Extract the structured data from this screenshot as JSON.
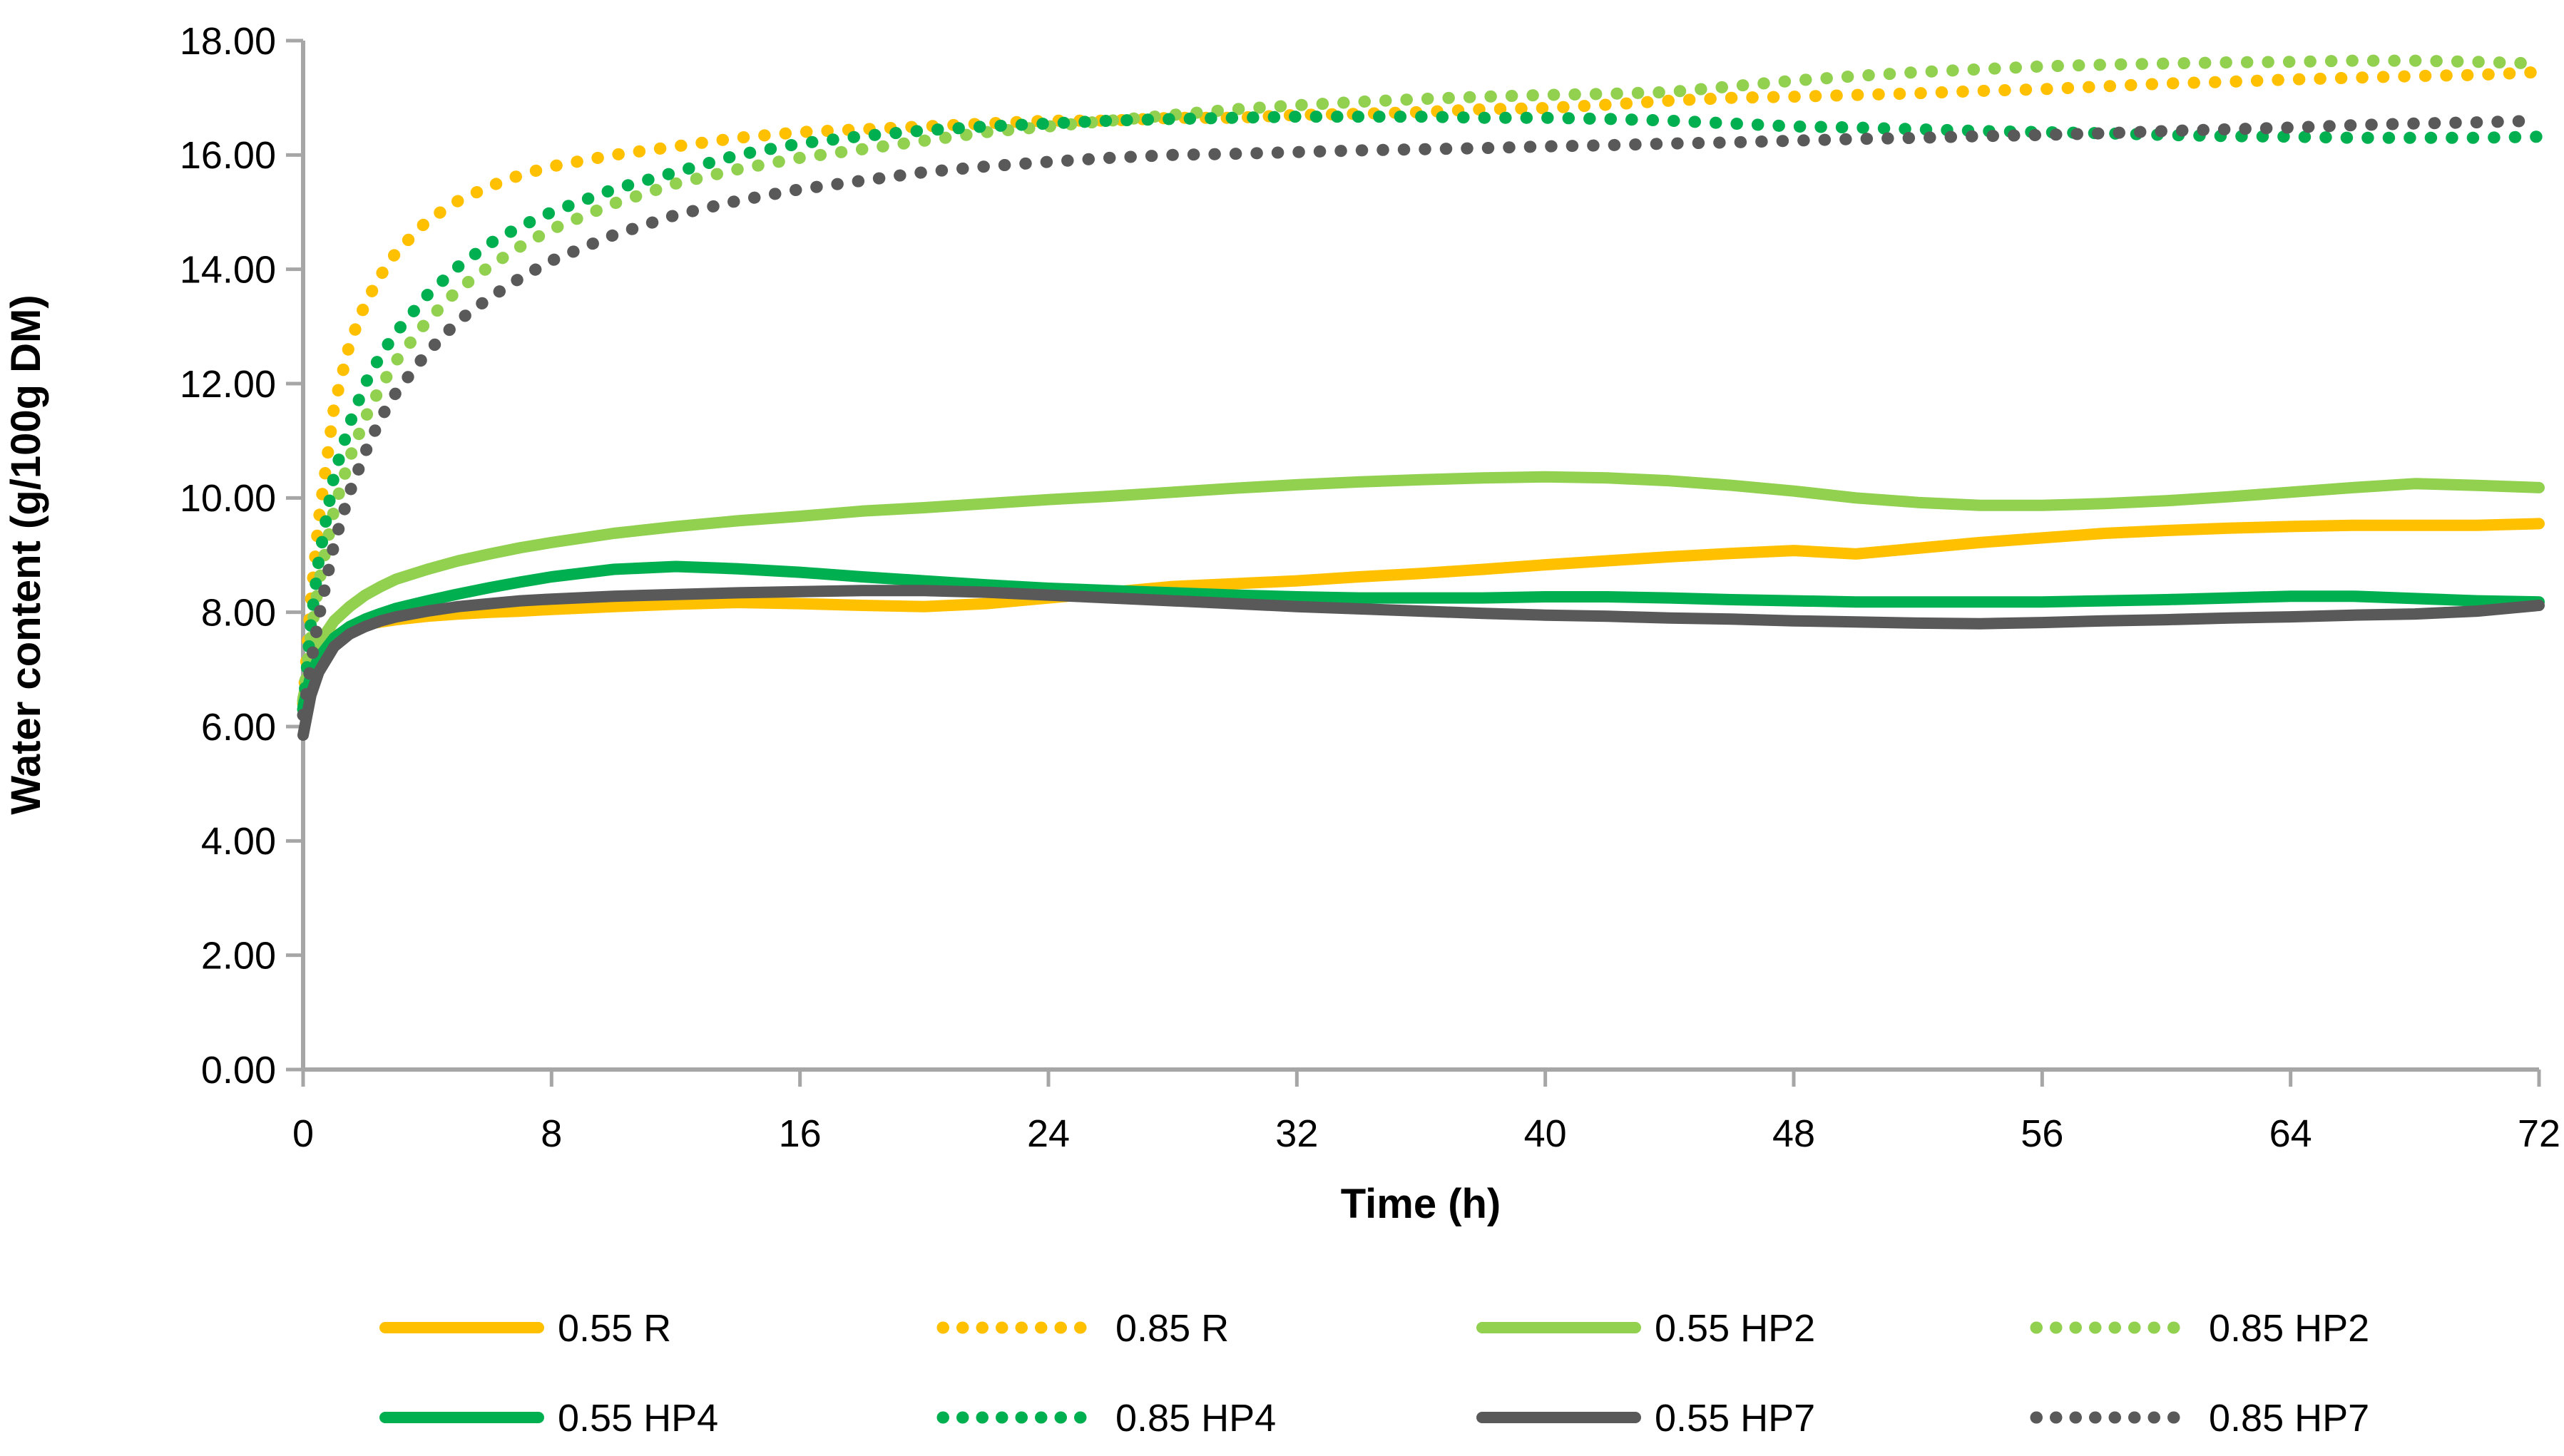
{
  "chart_data": {
    "type": "line",
    "title": "",
    "xlabel": "Time (h)",
    "ylabel": "Water content (g/100g DM)",
    "xlim": [
      0,
      72
    ],
    "ylim": [
      0,
      18
    ],
    "grid": false,
    "legend_position": "bottom",
    "x_ticks": [
      0,
      8,
      16,
      24,
      32,
      40,
      48,
      56,
      64,
      72
    ],
    "x_tick_labels": [
      "0",
      "8",
      "16",
      "24",
      "32",
      "40",
      "48",
      "56",
      "64",
      "72"
    ],
    "y_ticks": [
      0,
      2,
      4,
      6,
      8,
      10,
      12,
      14,
      16,
      18
    ],
    "y_tick_labels": [
      "0.00",
      "2.00",
      "4.00",
      "6.00",
      "8.00",
      "10.00",
      "12.00",
      "14.00",
      "16.00",
      "18.00"
    ],
    "axis_color": "#a6a6a6",
    "x": [
      0,
      0.25,
      0.5,
      1,
      1.5,
      2,
      2.5,
      3,
      4,
      5,
      6,
      7,
      8,
      10,
      12,
      14,
      16,
      18,
      20,
      22,
      24,
      26,
      28,
      30,
      32,
      34,
      36,
      38,
      40,
      42,
      44,
      46,
      48,
      50,
      52,
      54,
      56,
      58,
      60,
      62,
      64,
      66,
      68,
      70,
      72
    ],
    "series": [
      {
        "name": "0.55 R",
        "color": "#FFC000",
        "style": "solid",
        "values": [
          6.45,
          6.95,
          7.25,
          7.58,
          7.7,
          7.78,
          7.83,
          7.87,
          7.93,
          7.97,
          8.0,
          8.02,
          8.05,
          8.1,
          8.14,
          8.17,
          8.15,
          8.12,
          8.1,
          8.15,
          8.25,
          8.35,
          8.45,
          8.5,
          8.55,
          8.62,
          8.68,
          8.75,
          8.83,
          8.9,
          8.97,
          9.03,
          9.08,
          9.02,
          9.12,
          9.22,
          9.3,
          9.38,
          9.43,
          9.47,
          9.5,
          9.52,
          9.52,
          9.52,
          9.55
        ]
      },
      {
        "name": "0.85 R",
        "color": "#FFC000",
        "style": "dotted",
        "values": [
          6.4,
          8.2,
          9.6,
          11.6,
          12.7,
          13.4,
          13.9,
          14.3,
          14.85,
          15.2,
          15.45,
          15.65,
          15.8,
          16.0,
          16.15,
          16.3,
          16.4,
          16.45,
          16.5,
          16.55,
          16.6,
          16.6,
          16.65,
          16.65,
          16.7,
          16.72,
          16.75,
          16.8,
          16.82,
          16.88,
          16.95,
          17.0,
          17.02,
          17.05,
          17.08,
          17.12,
          17.15,
          17.2,
          17.25,
          17.28,
          17.32,
          17.35,
          17.38,
          17.4,
          17.45
        ]
      },
      {
        "name": "0.55 HP2",
        "color": "#92D050",
        "style": "solid",
        "values": [
          6.5,
          7.1,
          7.45,
          7.85,
          8.1,
          8.3,
          8.45,
          8.58,
          8.75,
          8.9,
          9.02,
          9.13,
          9.22,
          9.38,
          9.5,
          9.6,
          9.68,
          9.77,
          9.83,
          9.9,
          9.97,
          10.03,
          10.1,
          10.17,
          10.23,
          10.28,
          10.32,
          10.35,
          10.37,
          10.35,
          10.3,
          10.22,
          10.12,
          10.0,
          9.92,
          9.87,
          9.87,
          9.9,
          9.95,
          10.02,
          10.1,
          10.18,
          10.25,
          10.22,
          10.18
        ]
      },
      {
        "name": "0.85 HP2",
        "color": "#92D050",
        "style": "dotted",
        "values": [
          6.45,
          7.6,
          8.5,
          9.8,
          10.7,
          11.4,
          11.95,
          12.4,
          13.1,
          13.65,
          14.05,
          14.4,
          14.7,
          15.15,
          15.5,
          15.75,
          15.95,
          16.1,
          16.25,
          16.4,
          16.5,
          16.6,
          16.7,
          16.8,
          16.87,
          16.93,
          16.98,
          17.02,
          17.05,
          17.07,
          17.1,
          17.2,
          17.3,
          17.38,
          17.45,
          17.5,
          17.55,
          17.58,
          17.6,
          17.62,
          17.63,
          17.65,
          17.65,
          17.63,
          17.6
        ]
      },
      {
        "name": "0.55 HP4",
        "color": "#00B050",
        "style": "solid",
        "values": [
          6.35,
          6.9,
          7.2,
          7.55,
          7.75,
          7.88,
          7.98,
          8.07,
          8.2,
          8.32,
          8.43,
          8.53,
          8.62,
          8.75,
          8.8,
          8.76,
          8.7,
          8.62,
          8.55,
          8.48,
          8.42,
          8.38,
          8.34,
          8.3,
          8.27,
          8.25,
          8.25,
          8.25,
          8.27,
          8.27,
          8.25,
          8.22,
          8.2,
          8.18,
          8.18,
          8.18,
          8.18,
          8.2,
          8.22,
          8.25,
          8.28,
          8.28,
          8.24,
          8.2,
          8.18
        ]
      },
      {
        "name": "0.85 HP4",
        "color": "#00B050",
        "style": "dotted",
        "values": [
          6.3,
          7.8,
          8.9,
          10.4,
          11.3,
          12.0,
          12.5,
          12.9,
          13.55,
          14.05,
          14.45,
          14.75,
          15.0,
          15.4,
          15.7,
          16.0,
          16.2,
          16.33,
          16.43,
          16.5,
          16.55,
          16.6,
          16.63,
          16.65,
          16.67,
          16.67,
          16.67,
          16.65,
          16.65,
          16.63,
          16.6,
          16.55,
          16.5,
          16.48,
          16.45,
          16.42,
          16.4,
          16.38,
          16.35,
          16.33,
          16.32,
          16.3,
          16.3,
          16.3,
          16.32
        ]
      },
      {
        "name": "0.55 HP7",
        "color": "#595959",
        "style": "solid",
        "values": [
          5.85,
          6.55,
          6.95,
          7.4,
          7.62,
          7.75,
          7.85,
          7.92,
          8.02,
          8.1,
          8.15,
          8.2,
          8.23,
          8.28,
          8.31,
          8.34,
          8.36,
          8.38,
          8.38,
          8.35,
          8.3,
          8.25,
          8.2,
          8.15,
          8.1,
          8.06,
          8.02,
          7.98,
          7.95,
          7.93,
          7.9,
          7.88,
          7.85,
          7.83,
          7.81,
          7.8,
          7.82,
          7.85,
          7.87,
          7.9,
          7.92,
          7.95,
          7.97,
          8.02,
          8.12
        ]
      },
      {
        "name": "0.85 HP7",
        "color": "#595959",
        "style": "dotted",
        "values": [
          6.2,
          7.1,
          7.9,
          9.2,
          10.1,
          10.8,
          11.4,
          11.85,
          12.55,
          13.1,
          13.5,
          13.85,
          14.15,
          14.6,
          14.95,
          15.2,
          15.4,
          15.55,
          15.7,
          15.8,
          15.88,
          15.95,
          16.0,
          16.02,
          16.05,
          16.08,
          16.1,
          16.12,
          16.15,
          16.17,
          16.2,
          16.22,
          16.25,
          16.28,
          16.3,
          16.33,
          16.35,
          16.38,
          16.42,
          16.45,
          16.48,
          16.52,
          16.55,
          16.57,
          16.6
        ]
      }
    ],
    "legend": [
      {
        "label": "0.55 R",
        "series": 0
      },
      {
        "label": "0.85 R",
        "series": 1
      },
      {
        "label": "0.55 HP2",
        "series": 2
      },
      {
        "label": "0.85 HP2",
        "series": 3
      },
      {
        "label": "0.55 HP4",
        "series": 4
      },
      {
        "label": "0.85 HP4",
        "series": 5
      },
      {
        "label": "0.55 HP7",
        "series": 6
      },
      {
        "label": "0.85 HP7",
        "series": 7
      }
    ]
  }
}
